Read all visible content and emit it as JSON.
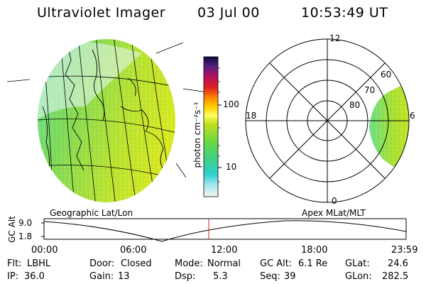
{
  "header": {
    "instrument": "Ultraviolet Imager",
    "date": "03 Jul 00",
    "time": "10:53:49 UT"
  },
  "colorbar": {
    "unit_label": "photon cm⁻²s⁻¹",
    "ticks": [
      "100",
      "10"
    ]
  },
  "polar_plot": {
    "mlt_labels": [
      "12",
      "18",
      "6",
      "0"
    ],
    "lat_labels": [
      "60",
      "70",
      "80"
    ]
  },
  "panel_labels": {
    "left": "Geographic Lat/Lon",
    "right": "Apex MLat/MLT"
  },
  "altitude_plot": {
    "axis_label": "GC Alt",
    "y_ticks": [
      "9.0",
      "1.8"
    ],
    "x_ticks": [
      "00:00",
      "06:00",
      "12:00",
      "18:00",
      "23:59"
    ],
    "current_time_fraction": 0.455
  },
  "status": {
    "flt_label": "Flt:",
    "flt_value": "LBHL",
    "ip_label": "IP:",
    "ip_value": "36.0",
    "door_label": "Door:",
    "door_value": "Closed",
    "gain_label": "Gain:",
    "gain_value": "13",
    "mode_label": "Mode:",
    "mode_value": "Normal",
    "dsp_label": "Dsp:",
    "dsp_value": "5.3",
    "gcalt_label": "GC Alt:",
    "gcalt_value": "6.1 Re",
    "seq_label": "Seq:",
    "seq_value": "39",
    "glat_label": "GLat:",
    "glat_value": "24.6",
    "glon_label": "GLon:",
    "glon_value": "282.5"
  },
  "colors": {
    "marker": "#cc2222",
    "grid": "#000000"
  }
}
